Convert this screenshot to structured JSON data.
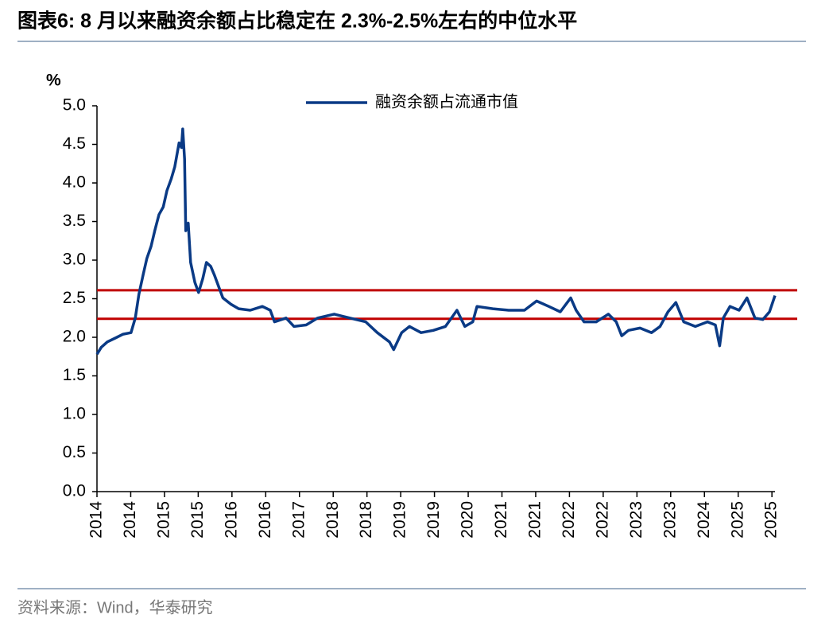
{
  "chart_data": {
    "type": "line",
    "title": "图表6:  8 月以来融资余额占比稳定在 2.3%-2.5%左右的中位水平",
    "y_label": "%",
    "source": "资料来源：Wind，华泰研究",
    "x": [
      2014.0,
      2014.07,
      2014.17,
      2014.3,
      2014.43,
      2014.56,
      2014.63,
      2014.69,
      2014.76,
      2014.82,
      2014.89,
      2014.95,
      2015.02,
      2015.09,
      2015.15,
      2015.22,
      2015.28,
      2015.35,
      2015.39,
      2015.41,
      2015.44,
      2015.46,
      2015.5,
      2015.54,
      2015.61,
      2015.67,
      2015.74,
      2015.8,
      2015.87,
      2015.93,
      2016.0,
      2016.07,
      2016.2,
      2016.33,
      2016.52,
      2016.72,
      2016.85,
      2016.92,
      2017.11,
      2017.24,
      2017.44,
      2017.63,
      2017.9,
      2018.16,
      2018.42,
      2018.61,
      2018.81,
      2018.88,
      2019.01,
      2019.14,
      2019.33,
      2019.53,
      2019.73,
      2019.92,
      2020.05,
      2020.18,
      2020.25,
      2020.51,
      2020.77,
      2021.03,
      2021.23,
      2021.43,
      2021.62,
      2021.79,
      2021.88,
      2022.01,
      2022.21,
      2022.41,
      2022.54,
      2022.63,
      2022.74,
      2022.93,
      2023.12,
      2023.26,
      2023.39,
      2023.52,
      2023.65,
      2023.84,
      2024.04,
      2024.17,
      2024.24,
      2024.3,
      2024.41,
      2024.56,
      2024.69,
      2024.82,
      2024.95,
      2025.06,
      2025.15
    ],
    "series": [
      {
        "name": "融资余额占流通市值",
        "color": "#0a3a85",
        "values": [
          1.78,
          1.87,
          1.94,
          1.99,
          2.04,
          2.06,
          2.25,
          2.56,
          2.81,
          3.02,
          3.18,
          3.38,
          3.59,
          3.69,
          3.9,
          4.05,
          4.21,
          4.52,
          4.46,
          4.7,
          4.31,
          3.38,
          3.48,
          2.97,
          2.71,
          2.58,
          2.76,
          2.97,
          2.92,
          2.81,
          2.66,
          2.51,
          2.43,
          2.37,
          2.35,
          2.4,
          2.35,
          2.2,
          2.25,
          2.14,
          2.16,
          2.25,
          2.3,
          2.25,
          2.2,
          2.06,
          1.94,
          1.84,
          2.06,
          2.14,
          2.06,
          2.09,
          2.14,
          2.35,
          2.14,
          2.2,
          2.4,
          2.37,
          2.35,
          2.35,
          2.47,
          2.4,
          2.33,
          2.51,
          2.35,
          2.2,
          2.2,
          2.3,
          2.2,
          2.02,
          2.09,
          2.12,
          2.06,
          2.14,
          2.33,
          2.45,
          2.2,
          2.14,
          2.2,
          2.16,
          1.89,
          2.25,
          2.4,
          2.35,
          2.51,
          2.25,
          2.23,
          2.33,
          2.54
        ]
      }
    ],
    "reference_lines": [
      2.61,
      2.24
    ],
    "reference_color": "#c00000",
    "xlim": [
      2014.0,
      2025.15
    ],
    "xticks": [
      {
        "value": 2014.0,
        "label": "2014"
      },
      {
        "value": 2014.555,
        "label": "2014"
      },
      {
        "value": 2015.11,
        "label": "2015"
      },
      {
        "value": 2015.665,
        "label": "2015"
      },
      {
        "value": 2016.22,
        "label": "2016"
      },
      {
        "value": 2016.775,
        "label": "2016"
      },
      {
        "value": 2017.33,
        "label": "2017"
      },
      {
        "value": 2017.885,
        "label": "2018"
      },
      {
        "value": 2018.44,
        "label": "2018"
      },
      {
        "value": 2018.995,
        "label": "2019"
      },
      {
        "value": 2019.55,
        "label": "2019"
      },
      {
        "value": 2020.105,
        "label": "2020"
      },
      {
        "value": 2020.66,
        "label": "2021"
      },
      {
        "value": 2021.215,
        "label": "2021"
      },
      {
        "value": 2021.77,
        "label": "2022"
      },
      {
        "value": 2022.325,
        "label": "2022"
      },
      {
        "value": 2022.88,
        "label": "2023"
      },
      {
        "value": 2023.435,
        "label": "2023"
      },
      {
        "value": 2023.99,
        "label": "2024"
      },
      {
        "value": 2024.545,
        "label": "2025"
      },
      {
        "value": 2025.1,
        "label": "2025"
      }
    ],
    "ylim": [
      0,
      5
    ],
    "yticks": [
      {
        "value": 0,
        "label": "0.0"
      },
      0.5,
      {
        "value": 1,
        "label": "1.0"
      },
      1.5,
      {
        "value": 2,
        "label": "2.0"
      },
      2.5,
      {
        "value": 3,
        "label": "3.0"
      },
      3.5,
      {
        "value": 4,
        "label": "4.0"
      },
      4.5,
      {
        "value": 5,
        "label": "5.0"
      }
    ]
  }
}
